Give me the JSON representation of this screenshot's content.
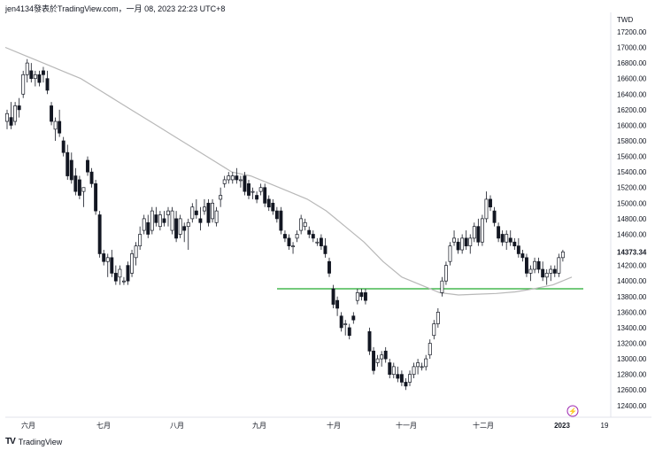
{
  "header": {
    "text": "jen4134發表於TradingView.com，一月 08, 2023 22:23 UTC+8"
  },
  "footer": {
    "brand": "TradingView"
  },
  "colors": {
    "up": "#ffffff",
    "down": "#131722",
    "ma": "#b8b8b8",
    "level": "#22ab2e",
    "axis": "#e0e3eb",
    "text": "#131722",
    "lightning": "#9c27b0"
  },
  "chart_data": {
    "type": "candlestick",
    "currency": "TWD",
    "ylim": [
      12250,
      17450
    ],
    "y_ticks": [
      12400,
      12600,
      12800,
      13000,
      13200,
      13400,
      13600,
      13800,
      14000,
      14200,
      14400,
      14600,
      14800,
      15000,
      15200,
      15400,
      15600,
      15800,
      16000,
      16200,
      16400,
      16600,
      16800,
      17000,
      17200
    ],
    "last_price": "14373.34",
    "x_labels": [
      "六月",
      "七月",
      "八月",
      "九月",
      "十月",
      "十一月",
      "十二月",
      "2023",
      "19"
    ],
    "horizontal_level": 13900,
    "candles": [
      {
        "o": 16050,
        "h": 16200,
        "l": 15950,
        "c": 16150
      },
      {
        "o": 16100,
        "h": 16300,
        "l": 15950,
        "c": 16000
      },
      {
        "o": 16050,
        "h": 16300,
        "l": 16000,
        "c": 16250
      },
      {
        "o": 16250,
        "h": 16350,
        "l": 16100,
        "c": 16200
      },
      {
        "o": 16400,
        "h": 16700,
        "l": 16350,
        "c": 16650
      },
      {
        "o": 16650,
        "h": 16850,
        "l": 16550,
        "c": 16800
      },
      {
        "o": 16700,
        "h": 16800,
        "l": 16550,
        "c": 16600
      },
      {
        "o": 16600,
        "h": 16700,
        "l": 16500,
        "c": 16650
      },
      {
        "o": 16650,
        "h": 16700,
        "l": 16500,
        "c": 16550
      },
      {
        "o": 16700,
        "h": 16750,
        "l": 16550,
        "c": 16650
      },
      {
        "o": 16600,
        "h": 16700,
        "l": 16400,
        "c": 16450
      },
      {
        "o": 16250,
        "h": 16300,
        "l": 16000,
        "c": 16050
      },
      {
        "o": 15950,
        "h": 16100,
        "l": 15800,
        "c": 16050
      },
      {
        "o": 16050,
        "h": 16200,
        "l": 15850,
        "c": 15900
      },
      {
        "o": 15800,
        "h": 15850,
        "l": 15600,
        "c": 15650
      },
      {
        "o": 15650,
        "h": 15750,
        "l": 15300,
        "c": 15350
      },
      {
        "o": 15550,
        "h": 15650,
        "l": 15250,
        "c": 15300
      },
      {
        "o": 15350,
        "h": 15450,
        "l": 15100,
        "c": 15150
      },
      {
        "o": 15300,
        "h": 15350,
        "l": 15050,
        "c": 15100
      },
      {
        "o": 15150,
        "h": 15200,
        "l": 14950,
        "c": 15200
      },
      {
        "o": 15550,
        "h": 15600,
        "l": 15350,
        "c": 15400
      },
      {
        "o": 15400,
        "h": 15450,
        "l": 15200,
        "c": 15250
      },
      {
        "o": 15250,
        "h": 15300,
        "l": 14850,
        "c": 14900
      },
      {
        "o": 14850,
        "h": 14900,
        "l": 14300,
        "c": 14350
      },
      {
        "o": 14350,
        "h": 14400,
        "l": 14200,
        "c": 14250
      },
      {
        "o": 14250,
        "h": 14350,
        "l": 14050,
        "c": 14300
      },
      {
        "o": 14300,
        "h": 14400,
        "l": 14050,
        "c": 14100
      },
      {
        "o": 14100,
        "h": 14200,
        "l": 13950,
        "c": 14000
      },
      {
        "o": 14050,
        "h": 14200,
        "l": 13950,
        "c": 14150
      },
      {
        "o": 14000,
        "h": 14050,
        "l": 13950,
        "c": 14000
      },
      {
        "o": 14200,
        "h": 14250,
        "l": 13950,
        "c": 14000
      },
      {
        "o": 14100,
        "h": 14400,
        "l": 14050,
        "c": 14350
      },
      {
        "o": 14300,
        "h": 14500,
        "l": 14200,
        "c": 14450
      },
      {
        "o": 14450,
        "h": 14700,
        "l": 14400,
        "c": 14600
      },
      {
        "o": 14650,
        "h": 14850,
        "l": 14600,
        "c": 14800
      },
      {
        "o": 14750,
        "h": 14850,
        "l": 14550,
        "c": 14600
      },
      {
        "o": 14650,
        "h": 14950,
        "l": 14600,
        "c": 14900
      },
      {
        "o": 14850,
        "h": 14950,
        "l": 14700,
        "c": 14750
      },
      {
        "o": 14700,
        "h": 14900,
        "l": 14650,
        "c": 14850
      },
      {
        "o": 14800,
        "h": 14900,
        "l": 14700,
        "c": 14750
      },
      {
        "o": 14850,
        "h": 14950,
        "l": 14700,
        "c": 14900
      },
      {
        "o": 14650,
        "h": 14950,
        "l": 14600,
        "c": 14900
      },
      {
        "o": 14800,
        "h": 14900,
        "l": 14500,
        "c": 14550
      },
      {
        "o": 14600,
        "h": 14850,
        "l": 14550,
        "c": 14800
      },
      {
        "o": 14700,
        "h": 14750,
        "l": 14500,
        "c": 14650
      },
      {
        "o": 14700,
        "h": 14800,
        "l": 14400,
        "c": 14750
      },
      {
        "o": 14800,
        "h": 15000,
        "l": 14750,
        "c": 14950
      },
      {
        "o": 14900,
        "h": 15050,
        "l": 14800,
        "c": 14850
      },
      {
        "o": 14800,
        "h": 14950,
        "l": 14650,
        "c": 14750
      },
      {
        "o": 14900,
        "h": 15050,
        "l": 14850,
        "c": 14950
      },
      {
        "o": 15000,
        "h": 15050,
        "l": 14700,
        "c": 14750
      },
      {
        "o": 14800,
        "h": 15050,
        "l": 14750,
        "c": 15000
      },
      {
        "o": 14750,
        "h": 14950,
        "l": 14700,
        "c": 14900
      },
      {
        "o": 15050,
        "h": 15200,
        "l": 14950,
        "c": 15100
      },
      {
        "o": 15250,
        "h": 15350,
        "l": 15200,
        "c": 15300
      },
      {
        "o": 15300,
        "h": 15400,
        "l": 15250,
        "c": 15350
      },
      {
        "o": 15300,
        "h": 15400,
        "l": 15250,
        "c": 15350
      },
      {
        "o": 15350,
        "h": 15450,
        "l": 15250,
        "c": 15300
      },
      {
        "o": 15300,
        "h": 15350,
        "l": 15200,
        "c": 15300
      },
      {
        "o": 15350,
        "h": 15400,
        "l": 15100,
        "c": 15150
      },
      {
        "o": 15250,
        "h": 15300,
        "l": 15050,
        "c": 15100
      },
      {
        "o": 15150,
        "h": 15200,
        "l": 15050,
        "c": 15150
      },
      {
        "o": 15100,
        "h": 15150,
        "l": 15000,
        "c": 15050
      },
      {
        "o": 15150,
        "h": 15250,
        "l": 15100,
        "c": 15200
      },
      {
        "o": 15200,
        "h": 15250,
        "l": 14950,
        "c": 15000
      },
      {
        "o": 15050,
        "h": 15100,
        "l": 14900,
        "c": 14950
      },
      {
        "o": 15000,
        "h": 15050,
        "l": 14850,
        "c": 14900
      },
      {
        "o": 14900,
        "h": 14950,
        "l": 14750,
        "c": 14800
      },
      {
        "o": 14900,
        "h": 14950,
        "l": 14600,
        "c": 14650
      },
      {
        "o": 14600,
        "h": 14650,
        "l": 14500,
        "c": 14550
      },
      {
        "o": 14550,
        "h": 14600,
        "l": 14400,
        "c": 14450
      },
      {
        "o": 14450,
        "h": 14500,
        "l": 14350,
        "c": 14450
      },
      {
        "o": 14550,
        "h": 14650,
        "l": 14500,
        "c": 14600
      },
      {
        "o": 14650,
        "h": 14850,
        "l": 14600,
        "c": 14800
      },
      {
        "o": 14700,
        "h": 14800,
        "l": 14650,
        "c": 14750
      },
      {
        "o": 14650,
        "h": 14700,
        "l": 14550,
        "c": 14600
      },
      {
        "o": 14600,
        "h": 14650,
        "l": 14500,
        "c": 14550
      },
      {
        "o": 14500,
        "h": 14550,
        "l": 14450,
        "c": 14500
      },
      {
        "o": 14550,
        "h": 14600,
        "l": 14400,
        "c": 14450
      },
      {
        "o": 14450,
        "h": 14550,
        "l": 14300,
        "c": 14350
      },
      {
        "o": 14250,
        "h": 14300,
        "l": 14050,
        "c": 14100
      },
      {
        "o": 13900,
        "h": 13950,
        "l": 13650,
        "c": 13700
      },
      {
        "o": 13750,
        "h": 13800,
        "l": 13550,
        "c": 13650
      },
      {
        "o": 13550,
        "h": 13600,
        "l": 13350,
        "c": 13400
      },
      {
        "o": 13450,
        "h": 13500,
        "l": 13300,
        "c": 13450
      },
      {
        "o": 13400,
        "h": 13450,
        "l": 13250,
        "c": 13300
      },
      {
        "o": 13550,
        "h": 13600,
        "l": 13450,
        "c": 13500
      },
      {
        "o": 13750,
        "h": 13900,
        "l": 13700,
        "c": 13850
      },
      {
        "o": 13850,
        "h": 13900,
        "l": 13750,
        "c": 13800
      },
      {
        "o": 13850,
        "h": 13900,
        "l": 13700,
        "c": 13750
      },
      {
        "o": 13350,
        "h": 13400,
        "l": 13050,
        "c": 13100
      },
      {
        "o": 13100,
        "h": 13150,
        "l": 12800,
        "c": 12850
      },
      {
        "o": 12950,
        "h": 13050,
        "l": 12900,
        "c": 13000
      },
      {
        "o": 13000,
        "h": 13100,
        "l": 12900,
        "c": 13050
      },
      {
        "o": 13100,
        "h": 13150,
        "l": 12950,
        "c": 13000
      },
      {
        "o": 12950,
        "h": 13000,
        "l": 12750,
        "c": 12800
      },
      {
        "o": 12800,
        "h": 12950,
        "l": 12750,
        "c": 12900
      },
      {
        "o": 12800,
        "h": 12900,
        "l": 12700,
        "c": 12750
      },
      {
        "o": 12800,
        "h": 12850,
        "l": 12650,
        "c": 12700
      },
      {
        "o": 12700,
        "h": 12750,
        "l": 12600,
        "c": 12650
      },
      {
        "o": 12700,
        "h": 12850,
        "l": 12650,
        "c": 12800
      },
      {
        "o": 12800,
        "h": 12950,
        "l": 12750,
        "c": 12900
      },
      {
        "o": 12900,
        "h": 13000,
        "l": 12800,
        "c": 12950
      },
      {
        "o": 12900,
        "h": 12950,
        "l": 12850,
        "c": 12900
      },
      {
        "o": 12900,
        "h": 13050,
        "l": 12850,
        "c": 13000
      },
      {
        "o": 13050,
        "h": 13250,
        "l": 13000,
        "c": 13200
      },
      {
        "o": 13300,
        "h": 13500,
        "l": 13250,
        "c": 13450
      },
      {
        "o": 13450,
        "h": 13650,
        "l": 13400,
        "c": 13600
      },
      {
        "o": 13850,
        "h": 14050,
        "l": 13800,
        "c": 14000
      },
      {
        "o": 14000,
        "h": 14250,
        "l": 13950,
        "c": 14200
      },
      {
        "o": 14250,
        "h": 14500,
        "l": 14200,
        "c": 14450
      },
      {
        "o": 14500,
        "h": 14650,
        "l": 14450,
        "c": 14550
      },
      {
        "o": 14500,
        "h": 14550,
        "l": 14350,
        "c": 14400
      },
      {
        "o": 14400,
        "h": 14600,
        "l": 14350,
        "c": 14550
      },
      {
        "o": 14550,
        "h": 14650,
        "l": 14400,
        "c": 14450
      },
      {
        "o": 14450,
        "h": 14600,
        "l": 14350,
        "c": 14550
      },
      {
        "o": 14550,
        "h": 14750,
        "l": 14500,
        "c": 14700
      },
      {
        "o": 14700,
        "h": 14800,
        "l": 14450,
        "c": 14500
      },
      {
        "o": 14500,
        "h": 14850,
        "l": 14450,
        "c": 14800
      },
      {
        "o": 14800,
        "h": 15150,
        "l": 14750,
        "c": 15050
      },
      {
        "o": 15050,
        "h": 15100,
        "l": 14900,
        "c": 14950
      },
      {
        "o": 14900,
        "h": 14950,
        "l": 14700,
        "c": 14750
      },
      {
        "o": 14700,
        "h": 14750,
        "l": 14500,
        "c": 14550
      },
      {
        "o": 14600,
        "h": 14650,
        "l": 14450,
        "c": 14500
      },
      {
        "o": 14500,
        "h": 14650,
        "l": 14400,
        "c": 14600
      },
      {
        "o": 14550,
        "h": 14650,
        "l": 14450,
        "c": 14500
      },
      {
        "o": 14500,
        "h": 14550,
        "l": 14400,
        "c": 14450
      },
      {
        "o": 14450,
        "h": 14550,
        "l": 14300,
        "c": 14350
      },
      {
        "o": 14350,
        "h": 14400,
        "l": 14250,
        "c": 14300
      },
      {
        "o": 14300,
        "h": 14350,
        "l": 14050,
        "c": 14100
      },
      {
        "o": 14100,
        "h": 14200,
        "l": 14000,
        "c": 14150
      },
      {
        "o": 14150,
        "h": 14300,
        "l": 14100,
        "c": 14250
      },
      {
        "o": 14250,
        "h": 14300,
        "l": 14100,
        "c": 14150
      },
      {
        "o": 14150,
        "h": 14250,
        "l": 14000,
        "c": 14050
      },
      {
        "o": 14050,
        "h": 14150,
        "l": 13950,
        "c": 14100
      },
      {
        "o": 14100,
        "h": 14200,
        "l": 14000,
        "c": 14150
      },
      {
        "o": 14150,
        "h": 14200,
        "l": 14050,
        "c": 14100
      },
      {
        "o": 14100,
        "h": 14350,
        "l": 14050,
        "c": 14300
      },
      {
        "o": 14300,
        "h": 14400,
        "l": 14250,
        "c": 14373.34
      }
    ],
    "moving_average": [
      17000,
      16900,
      16800,
      16700,
      16600,
      16450,
      16300,
      16150,
      16000,
      15850,
      15700,
      15550,
      15400,
      15350,
      15250,
      15150,
      15050,
      14900,
      14700,
      14500,
      14250,
      14050,
      13950,
      13850,
      13820,
      13830,
      13840,
      13860,
      13900,
      13950,
      14050
    ]
  }
}
